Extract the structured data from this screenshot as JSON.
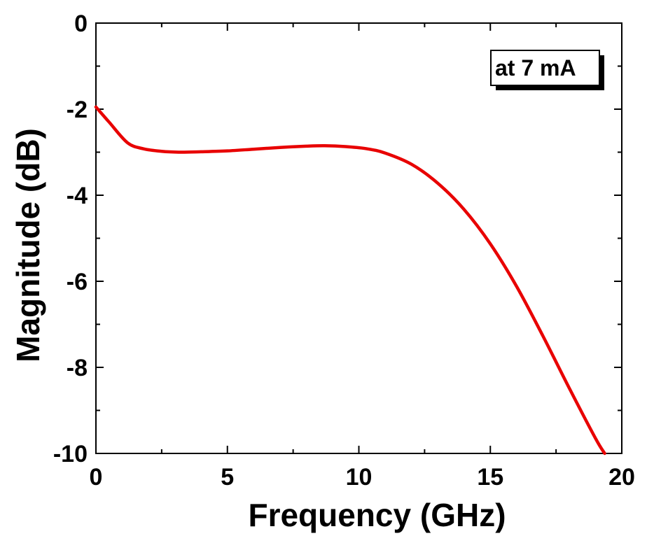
{
  "chart_data": {
    "type": "line",
    "title": "",
    "xlabel": "Frequency (GHz)",
    "ylabel": "Magnitude (dB)",
    "xlim": [
      0,
      20
    ],
    "ylim": [
      -10,
      0
    ],
    "x_ticks": [
      0,
      5,
      10,
      15,
      20
    ],
    "y_ticks": [
      0,
      -2,
      -4,
      -6,
      -8,
      -10
    ],
    "x_tick_labels": [
      "0",
      "5",
      "10",
      "15",
      "20"
    ],
    "y_tick_labels": [
      "0",
      "-2",
      "-4",
      "-6",
      "-8",
      "-10"
    ],
    "grid": false,
    "annotation": "at 7 mA",
    "annotation_position": "top-right",
    "series": [
      {
        "color": "#e80000",
        "x": [
          0,
          0.5,
          1.2,
          1.8,
          2.5,
          3.2,
          4,
          5,
          6,
          7,
          8,
          8.7,
          9.5,
          10.3,
          11,
          12,
          13,
          14,
          15,
          16,
          17,
          18,
          19,
          19.35
        ],
        "y": [
          -1.95,
          -2.3,
          -2.78,
          -2.92,
          -2.98,
          -3.0,
          -2.99,
          -2.97,
          -2.93,
          -2.89,
          -2.86,
          -2.85,
          -2.87,
          -2.92,
          -3.02,
          -3.28,
          -3.72,
          -4.33,
          -5.13,
          -6.12,
          -7.27,
          -8.48,
          -9.65,
          -10.0
        ]
      }
    ]
  }
}
